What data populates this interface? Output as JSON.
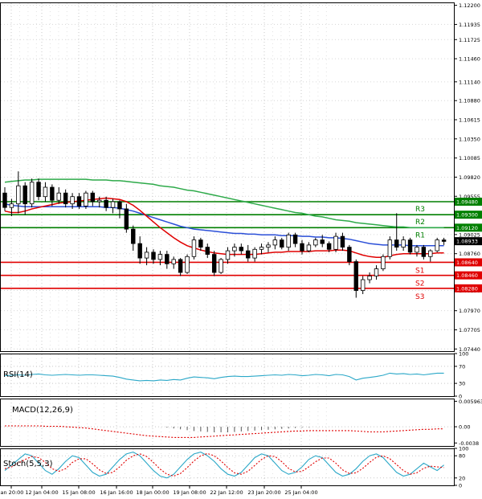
{
  "chart_data": [
    {
      "type": "candlestick",
      "panel": "price",
      "instrument_note": "",
      "y_ticks": [
        "1.12200",
        "1.11935",
        "1.11725",
        "1.11460",
        "1.11140",
        "1.10880",
        "1.10615",
        "1.10350",
        "1.10085",
        "1.09820",
        "1.09555",
        "1.09025",
        "1.08760",
        "1.08250",
        "1.07970",
        "1.07705",
        "1.07440"
      ],
      "ylim": [
        1.0741,
        1.1224
      ],
      "current_price": "1.08933",
      "levels": [
        {
          "name": "R3",
          "value": 1.0948,
          "label": "1.09480",
          "color": "#007f00"
        },
        {
          "name": "R2",
          "value": 1.093,
          "label": "1.09300",
          "color": "#007f00"
        },
        {
          "name": "R1",
          "value": 1.0912,
          "label": "1.09120",
          "color": "#007f00"
        },
        {
          "name": "S1",
          "value": 1.0864,
          "label": "1.08640",
          "color": "#e00000"
        },
        {
          "name": "S2",
          "value": 1.0846,
          "label": "1.08460",
          "color": "#e00000"
        },
        {
          "name": "S3",
          "value": 1.0828,
          "label": "1.08280",
          "color": "#e00000"
        }
      ],
      "candles": [
        [
          1.096,
          1.0968,
          1.0935,
          1.094
        ],
        [
          1.094,
          1.0952,
          1.0928,
          1.0945
        ],
        [
          1.0945,
          1.099,
          1.0932,
          1.097
        ],
        [
          1.097,
          1.0975,
          1.093,
          1.0945
        ],
        [
          1.0945,
          1.098,
          1.094,
          1.0975
        ],
        [
          1.0975,
          1.098,
          1.095,
          1.0955
        ],
        [
          1.0955,
          1.0975,
          1.0948,
          1.0968
        ],
        [
          1.0968,
          1.0972,
          1.0942,
          1.095
        ],
        [
          1.095,
          1.0968,
          1.0945,
          1.096
        ],
        [
          1.096,
          1.0965,
          1.094,
          1.0945
        ],
        [
          1.0945,
          1.096,
          1.0938,
          1.0955
        ],
        [
          1.0955,
          1.096,
          1.0938,
          1.0942
        ],
        [
          1.0942,
          1.0963,
          1.0938,
          1.096
        ],
        [
          1.096,
          1.0963,
          1.0942,
          1.0948
        ],
        [
          1.0948,
          1.0955,
          1.094,
          1.095
        ],
        [
          1.095,
          1.0955,
          1.0935,
          1.094
        ],
        [
          1.094,
          1.0952,
          1.0932,
          1.0948
        ],
        [
          1.0948,
          1.095,
          1.0925,
          1.0938
        ],
        [
          1.0938,
          1.0945,
          1.0905,
          1.091
        ],
        [
          1.091,
          1.0915,
          1.088,
          1.089
        ],
        [
          1.089,
          1.09,
          1.0862,
          1.087
        ],
        [
          1.087,
          1.0885,
          1.086,
          1.0878
        ],
        [
          1.0878,
          1.0882,
          1.0862,
          1.0868
        ],
        [
          1.0868,
          1.088,
          1.086,
          1.0875
        ],
        [
          1.0875,
          1.088,
          1.0855,
          1.0862
        ],
        [
          1.0862,
          1.0872,
          1.0855,
          1.0868
        ],
        [
          1.0868,
          1.087,
          1.0845,
          1.085
        ],
        [
          1.085,
          1.0875,
          1.0848,
          1.0872
        ],
        [
          1.0872,
          1.09,
          1.0868,
          1.0895
        ],
        [
          1.0895,
          1.0898,
          1.088,
          1.0885
        ],
        [
          1.0885,
          1.089,
          1.087,
          1.0875
        ],
        [
          1.0875,
          1.088,
          1.0845,
          1.085
        ],
        [
          1.085,
          1.087,
          1.0848,
          1.0868
        ],
        [
          1.0868,
          1.0885,
          1.0862,
          1.088
        ],
        [
          1.088,
          1.089,
          1.0872,
          1.0885
        ],
        [
          1.0885,
          1.089,
          1.0875,
          1.088
        ],
        [
          1.088,
          1.0888,
          1.0865,
          1.087
        ],
        [
          1.087,
          1.0885,
          1.0865,
          1.0882
        ],
        [
          1.0882,
          1.089,
          1.0875,
          1.0885
        ],
        [
          1.0885,
          1.0892,
          1.0878,
          1.0888
        ],
        [
          1.0888,
          1.09,
          1.0882,
          1.0895
        ],
        [
          1.0895,
          1.0898,
          1.0882,
          1.0885
        ],
        [
          1.0885,
          1.0905,
          1.088,
          1.0902
        ],
        [
          1.0902,
          1.0905,
          1.0885,
          1.089
        ],
        [
          1.089,
          1.0895,
          1.0875,
          1.088
        ],
        [
          1.088,
          1.0892,
          1.0878,
          1.0888
        ],
        [
          1.0888,
          1.0898,
          1.0885,
          1.0895
        ],
        [
          1.0895,
          1.0902,
          1.0885,
          1.089
        ],
        [
          1.089,
          1.0893,
          1.0878,
          1.0882
        ],
        [
          1.0882,
          1.0905,
          1.0878,
          1.09
        ],
        [
          1.09,
          1.0905,
          1.088,
          1.0885
        ],
        [
          1.0885,
          1.0888,
          1.086,
          1.0865
        ],
        [
          1.0865,
          1.0868,
          1.0815,
          1.0825
        ],
        [
          1.0825,
          1.0845,
          1.082,
          1.084
        ],
        [
          1.084,
          1.085,
          1.0835,
          1.0845
        ],
        [
          1.0845,
          1.086,
          1.084,
          1.0855
        ],
        [
          1.0855,
          1.0875,
          1.0852,
          1.0872
        ],
        [
          1.0872,
          1.09,
          1.0868,
          1.0895
        ],
        [
          1.0895,
          1.0932,
          1.088,
          1.0885
        ],
        [
          1.0885,
          1.09,
          1.088,
          1.0895
        ],
        [
          1.0895,
          1.0898,
          1.0875,
          1.0878
        ],
        [
          1.0878,
          1.0888,
          1.0872,
          1.0885
        ],
        [
          1.0885,
          1.0888,
          1.0868,
          1.0872
        ],
        [
          1.0872,
          1.0882,
          1.0865,
          1.088
        ],
        [
          1.088,
          1.0898,
          1.0878,
          1.0895
        ],
        [
          1.0895,
          1.0898,
          1.0888,
          1.0893
        ]
      ],
      "ma_fast": [
        1.0935,
        1.0933,
        1.0933,
        1.0935,
        1.0938,
        1.094,
        1.0942,
        1.0944,
        1.0946,
        1.0947,
        1.0948,
        1.0949,
        1.095,
        1.0951,
        1.0952,
        1.0953,
        1.0952,
        1.0951,
        1.0948,
        1.0943,
        1.0936,
        1.0928,
        1.092,
        1.0912,
        1.0905,
        1.0898,
        1.0892,
        1.0887,
        1.0884,
        1.0881,
        1.0879,
        1.0877,
        1.0876,
        1.0875,
        1.0875,
        1.0875,
        1.0875,
        1.0875,
        1.0876,
        1.0877,
        1.0878,
        1.0878,
        1.0879,
        1.0879,
        1.0879,
        1.0879,
        1.088,
        1.088,
        1.088,
        1.0881,
        1.0881,
        1.088,
        1.0877,
        1.0874,
        1.0872,
        1.0871,
        1.0871,
        1.0873,
        1.0875,
        1.0876,
        1.0876,
        1.0876,
        1.0876,
        1.0876,
        1.0877,
        1.0877
      ],
      "ma_mid": [
        1.0945,
        1.0943,
        1.0942,
        1.0941,
        1.0941,
        1.0941,
        1.0941,
        1.0941,
        1.0941,
        1.0941,
        1.0941,
        1.0941,
        1.0941,
        1.0941,
        1.0941,
        1.094,
        1.094,
        1.0939,
        1.0937,
        1.0935,
        1.0932,
        1.0929,
        1.0926,
        1.0923,
        1.092,
        1.0917,
        1.0914,
        1.0912,
        1.091,
        1.0909,
        1.0908,
        1.0907,
        1.0906,
        1.0905,
        1.0904,
        1.0904,
        1.0903,
        1.0903,
        1.0902,
        1.0902,
        1.0902,
        1.0901,
        1.0901,
        1.0901,
        1.09,
        1.09,
        1.0899,
        1.0899,
        1.0898,
        1.0898,
        1.0897,
        1.0896,
        1.0894,
        1.0892,
        1.089,
        1.0889,
        1.0888,
        1.0888,
        1.0888,
        1.0888,
        1.0887,
        1.0887,
        1.0887,
        1.0887,
        1.0887,
        1.0887
      ],
      "ma_slow": [
        1.0975,
        1.0976,
        1.0977,
        1.0978,
        1.0978,
        1.0979,
        1.0979,
        1.0979,
        1.0979,
        1.0979,
        1.0979,
        1.0979,
        1.0979,
        1.0978,
        1.0978,
        1.0978,
        1.0977,
        1.0977,
        1.0976,
        1.0975,
        1.0974,
        1.0973,
        1.0972,
        1.097,
        1.0969,
        1.0968,
        1.0966,
        1.0964,
        1.0963,
        1.0961,
        1.0959,
        1.0957,
        1.0955,
        1.0953,
        1.0951,
        1.0949,
        1.0947,
        1.0945,
        1.0943,
        1.0941,
        1.0939,
        1.0937,
        1.0935,
        1.0933,
        1.0932,
        1.093,
        1.0928,
        1.0927,
        1.0925,
        1.0923,
        1.0922,
        1.0921,
        1.0919,
        1.0918,
        1.0917,
        1.0916,
        1.0915,
        1.0914,
        1.0913,
        1.0913,
        1.0912,
        1.0912,
        1.0912,
        1.0912,
        1.0912,
        1.0912
      ]
    },
    {
      "type": "line",
      "panel": "rsi",
      "title": "RSI(14)",
      "y_ticks": [
        "100",
        "70",
        "30",
        "0"
      ],
      "ylim": [
        0,
        100
      ],
      "series": [
        {
          "values": [
            48,
            49,
            50,
            49,
            51,
            52,
            50,
            49,
            50,
            51,
            50,
            49,
            50,
            50,
            49,
            48,
            47,
            44,
            40,
            38,
            36,
            37,
            36,
            38,
            37,
            39,
            38,
            42,
            45,
            44,
            43,
            41,
            44,
            46,
            47,
            46,
            46,
            47,
            48,
            49,
            50,
            49,
            51,
            50,
            48,
            49,
            51,
            50,
            48,
            51,
            50,
            46,
            38,
            42,
            44,
            46,
            49,
            54,
            52,
            53,
            51,
            52,
            50,
            52,
            54,
            54
          ]
        }
      ]
    },
    {
      "type": "line",
      "panel": "macd",
      "title": "MACD(12,26,9)",
      "y_ticks": [
        "0.005963",
        "0.00",
        "-0.0038"
      ],
      "ylim": [
        -0.0045,
        0.0066
      ],
      "histogram": [
        0,
        0,
        0,
        0,
        0,
        0,
        0,
        0,
        0,
        0,
        0,
        0,
        0,
        0,
        0,
        0,
        0,
        0,
        0,
        0,
        0,
        0,
        0,
        0,
        -0.0002,
        -0.0004,
        -0.0006,
        -0.0008,
        -0.001,
        -0.0011,
        -0.0012,
        -0.0013,
        -0.0013,
        -0.0013,
        -0.0012,
        -0.0011,
        -0.001,
        -0.0009,
        -0.0008,
        -0.0007,
        -0.0006,
        -0.0005,
        -0.0004,
        -0.0003,
        -0.0002,
        -0.0001,
        0,
        0,
        0,
        0,
        0,
        0,
        0,
        0,
        0,
        0,
        0,
        0,
        0,
        0,
        0,
        0,
        0,
        0,
        0,
        0
      ],
      "series": [
        {
          "values": [
            0.0002,
            0.0002,
            0.0002,
            0.0002,
            0.0002,
            0.0002,
            0.0001,
            0.0001,
            0.0001,
            0.0,
            -0.0001,
            -0.0002,
            -0.0003,
            -0.0005,
            -0.0007,
            -0.0009,
            -0.0011,
            -0.0013,
            -0.0015,
            -0.0017,
            -0.0019,
            -0.0021,
            -0.0022,
            -0.0023,
            -0.0024,
            -0.0025,
            -0.0025,
            -0.0025,
            -0.0025,
            -0.0024,
            -0.0023,
            -0.0022,
            -0.0021,
            -0.002,
            -0.0019,
            -0.0018,
            -0.0017,
            -0.0016,
            -0.0015,
            -0.0014,
            -0.0013,
            -0.0012,
            -0.0011,
            -0.001,
            -0.001,
            -0.0009,
            -0.0009,
            -0.0009,
            -0.0009,
            -0.0009,
            -0.0009,
            -0.0009,
            -0.001,
            -0.0011,
            -0.0012,
            -0.0012,
            -0.0012,
            -0.0011,
            -0.001,
            -0.0009,
            -0.0008,
            -0.0007,
            -0.0006,
            -0.0006,
            -0.0005,
            -0.0005
          ]
        }
      ]
    },
    {
      "type": "line",
      "panel": "stoch",
      "title": "Stoch(5,5,3)",
      "y_ticks": [
        "100",
        "80",
        "20",
        "0"
      ],
      "ylim": [
        0,
        100
      ],
      "series": [
        {
          "values": [
            40,
            55,
            70,
            85,
            80,
            60,
            40,
            30,
            45,
            65,
            80,
            75,
            55,
            35,
            25,
            30,
            50,
            70,
            85,
            90,
            80,
            60,
            40,
            25,
            20,
            30,
            50,
            70,
            85,
            90,
            80,
            65,
            45,
            30,
            25,
            35,
            55,
            75,
            85,
            80,
            60,
            40,
            30,
            35,
            50,
            70,
            80,
            75,
            55,
            35,
            25,
            30,
            45,
            65,
            80,
            85,
            75,
            55,
            35,
            25,
            30,
            45,
            60,
            50,
            40,
            55
          ]
        },
        {
          "values": [
            45,
            50,
            60,
            70,
            78,
            75,
            62,
            45,
            38,
            45,
            62,
            72,
            72,
            58,
            42,
            32,
            35,
            50,
            68,
            80,
            85,
            78,
            62,
            44,
            30,
            25,
            32,
            48,
            66,
            80,
            86,
            80,
            66,
            48,
            34,
            30,
            38,
            54,
            70,
            80,
            78,
            64,
            46,
            36,
            38,
            50,
            64,
            74,
            74,
            60,
            42,
            32,
            34,
            46,
            62,
            76,
            80,
            72,
            56,
            40,
            30,
            34,
            46,
            52,
            50,
            48
          ]
        }
      ]
    }
  ],
  "x_labels": [
    "Jan 20:00",
    "12 Jan 04:00",
    "15 Jan 08:00",
    "16 Jan 16:00",
    "18 Jan 00:00",
    "19 Jan 08:00",
    "22 Jan 12:00",
    "23 Jan 20:00",
    "25 Jan 04:00"
  ],
  "colors": {
    "bull": "#ffffff",
    "bear": "#000000",
    "ma_fast": "#e00000",
    "ma_mid": "#2b4fd8",
    "ma_slow": "#2eaa4a",
    "stoch_main": "#2ba8c8",
    "stoch_signal": "#e00000",
    "rsi": "#2ba8c8",
    "macd_hist": "#000000",
    "macd_signal": "#e00000",
    "current_price_bg": "#000000"
  }
}
